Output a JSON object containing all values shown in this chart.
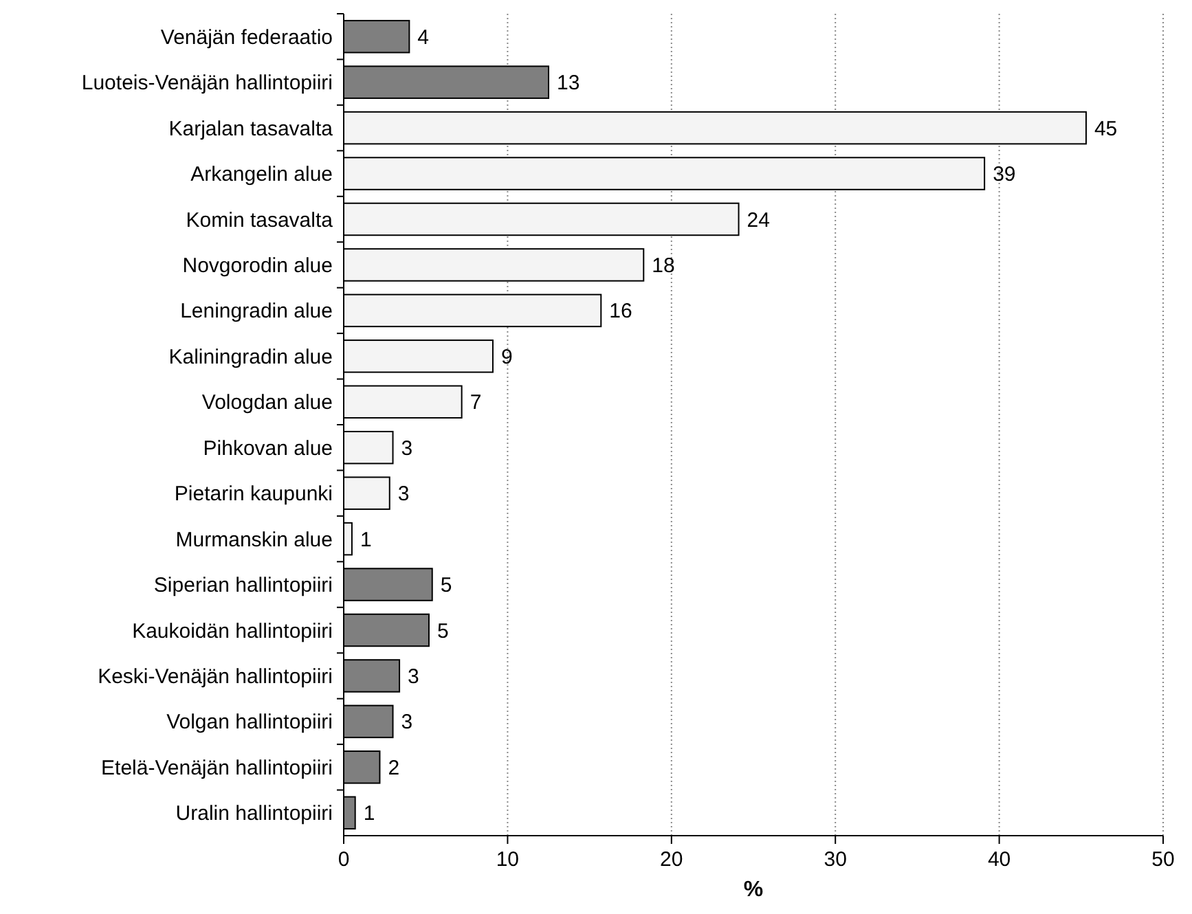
{
  "chart_data": {
    "type": "bar",
    "orientation": "horizontal",
    "xlabel": "%",
    "categories": [
      "Venäjän federaatio",
      "Luoteis-Venäjän hallintopiiri",
      "Karjalan tasavalta",
      "Arkangelin alue",
      "Komin tasavalta",
      "Novgorodin alue",
      "Leningradin alue",
      "Kaliningradin alue",
      "Vologdan alue",
      "Pihkovan alue",
      "Pietarin kaupunki",
      "Murmanskin alue",
      "Siperian hallintopiiri",
      "Kaukoidän hallintopiiri",
      "Keski-Venäjän hallintopiiri",
      "Volgan hallintopiiri",
      "Etelä-Venäjän hallintopiiri",
      "Uralin hallintopiiri"
    ],
    "values": [
      4.0,
      12.5,
      45.3,
      39.1,
      24.1,
      18.3,
      15.7,
      9.1,
      7.2,
      3.0,
      2.8,
      0.5,
      5.4,
      5.2,
      3.4,
      3.0,
      2.2,
      0.7
    ],
    "value_labels": [
      "4",
      "13",
      "45",
      "39",
      "24",
      "18",
      "16",
      "9",
      "7",
      "3",
      "3",
      "1",
      "5",
      "5",
      "3",
      "3",
      "2",
      "1"
    ],
    "colors": [
      "#7f7f7f",
      "#7f7f7f",
      "#f4f4f4",
      "#f4f4f4",
      "#f4f4f4",
      "#f4f4f4",
      "#f4f4f4",
      "#f4f4f4",
      "#f4f4f4",
      "#f4f4f4",
      "#f4f4f4",
      "#f4f4f4",
      "#7f7f7f",
      "#7f7f7f",
      "#7f7f7f",
      "#7f7f7f",
      "#7f7f7f",
      "#7f7f7f"
    ],
    "xlim": [
      0,
      50
    ],
    "xticks": [
      0,
      10,
      20,
      30,
      40,
      50
    ],
    "grid": "x"
  }
}
